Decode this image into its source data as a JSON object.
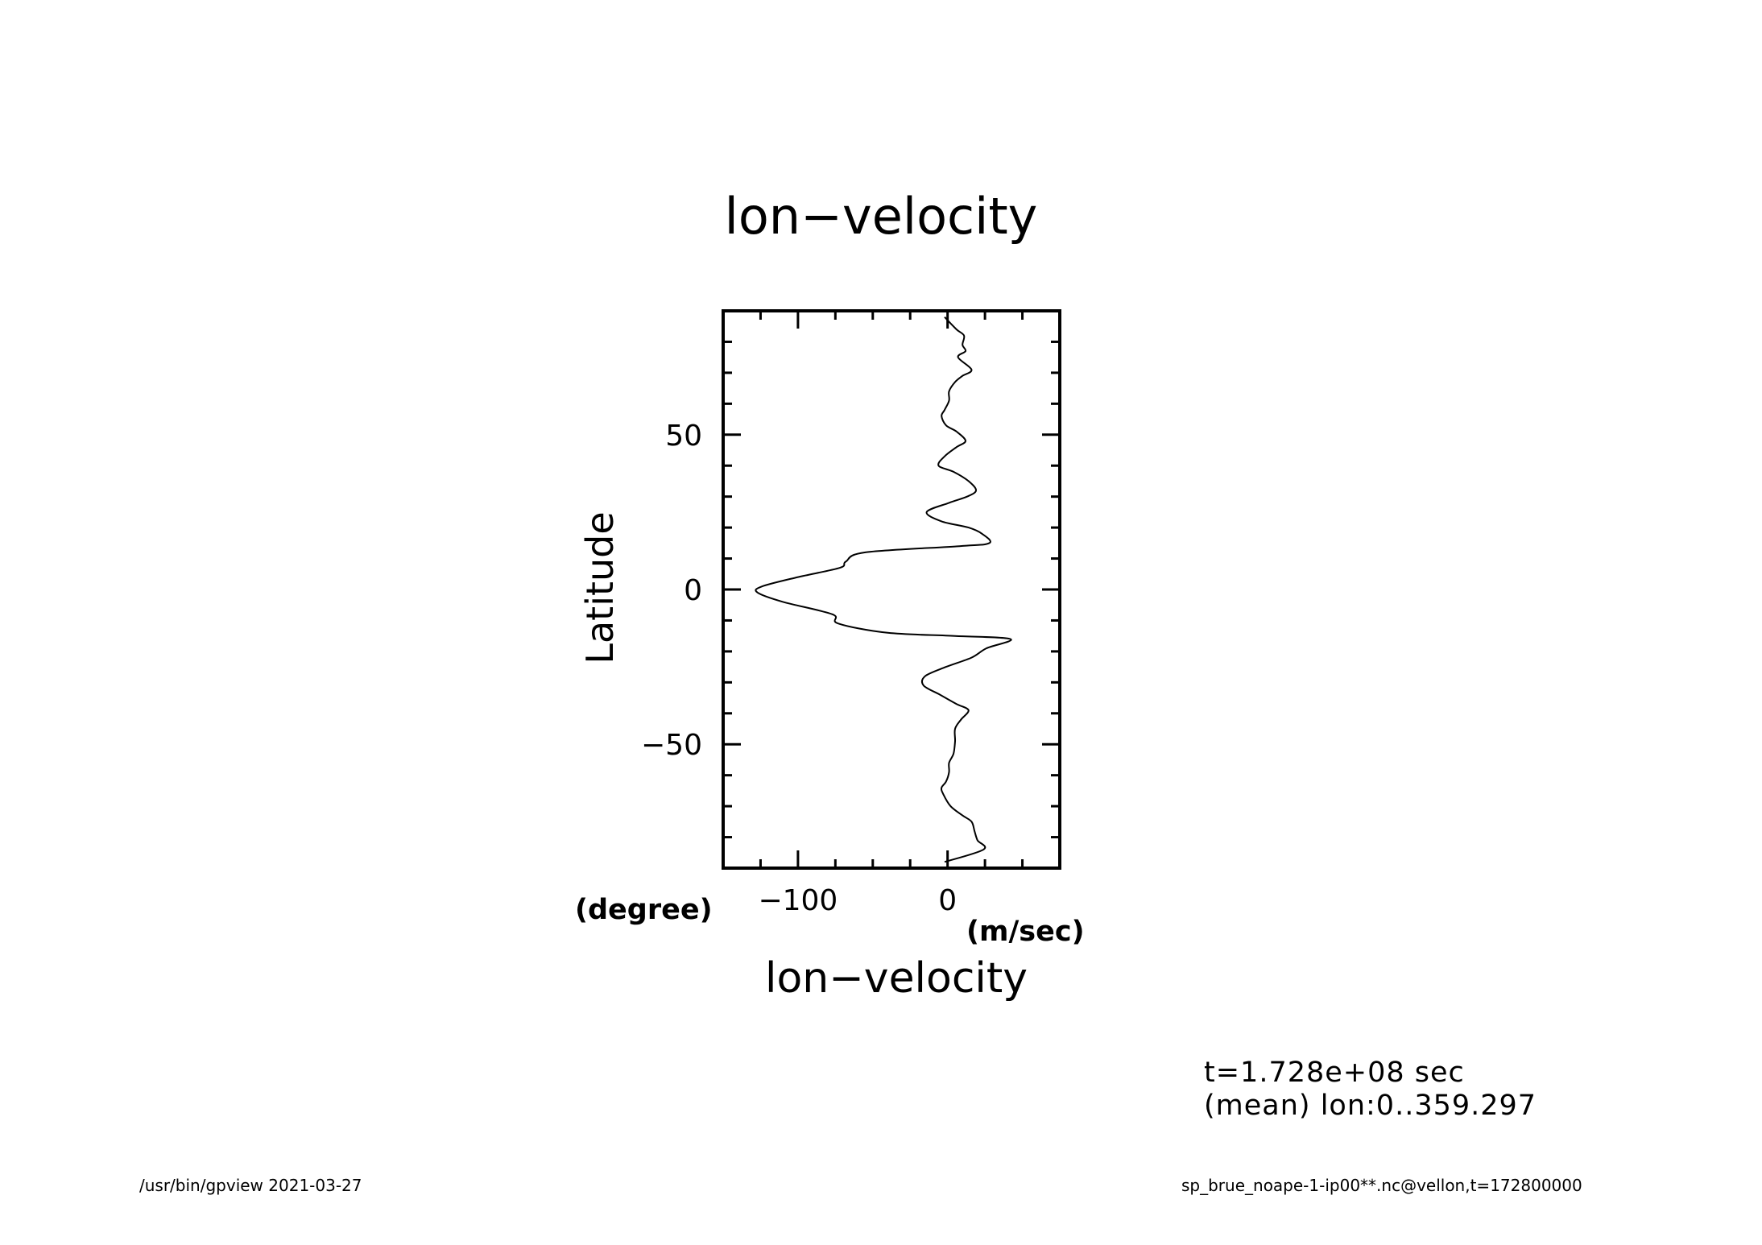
{
  "chart_data": {
    "type": "line",
    "title": "lon−velocity",
    "xlabel": "lon−velocity",
    "ylabel": "Latitude",
    "xunit": "(m/sec)",
    "yunit": "(degree)",
    "xlim": [
      -150,
      75
    ],
    "ylim": [
      -90,
      90
    ],
    "xticks": [
      -100,
      0
    ],
    "xtick_labels": [
      "−100",
      "0"
    ],
    "yticks": [
      50,
      0,
      -50
    ],
    "ytick_labels": [
      "50",
      "0",
      "−50"
    ],
    "grid": false,
    "series": [
      {
        "points": [
          [
            -2,
            88
          ],
          [
            6,
            84
          ],
          [
            11,
            82
          ],
          [
            10,
            79
          ],
          [
            12,
            77
          ],
          [
            7,
            75
          ],
          [
            16,
            71
          ],
          [
            10,
            69
          ],
          [
            5,
            67
          ],
          [
            1,
            64
          ],
          [
            1,
            61
          ],
          [
            -2,
            58
          ],
          [
            -4,
            56
          ],
          [
            -1,
            53
          ],
          [
            6,
            51
          ],
          [
            12,
            48
          ],
          [
            6,
            46
          ],
          [
            -2,
            43
          ],
          [
            -6,
            40
          ],
          [
            4,
            38
          ],
          [
            14,
            35
          ],
          [
            19,
            32
          ],
          [
            13,
            30
          ],
          [
            1,
            28
          ],
          [
            -14,
            25
          ],
          [
            -4,
            22
          ],
          [
            14,
            20
          ],
          [
            23,
            18
          ],
          [
            28,
            15
          ],
          [
            8,
            14
          ],
          [
            -55,
            12
          ],
          [
            -68,
            9
          ],
          [
            -72,
            7
          ],
          [
            -100,
            4
          ],
          [
            -124,
            1
          ],
          [
            -127,
            -1
          ],
          [
            -110,
            -4
          ],
          [
            -77,
            -8
          ],
          [
            -73,
            -11
          ],
          [
            -40,
            -14
          ],
          [
            5,
            -15
          ],
          [
            42,
            -16
          ],
          [
            26,
            -19
          ],
          [
            16,
            -22
          ],
          [
            -1,
            -25
          ],
          [
            -15,
            -28
          ],
          [
            -16,
            -31
          ],
          [
            -5,
            -34
          ],
          [
            6,
            -37
          ],
          [
            14,
            -39
          ],
          [
            9,
            -42
          ],
          [
            5,
            -45
          ],
          [
            5,
            -49
          ],
          [
            4,
            -53
          ],
          [
            1,
            -56
          ],
          [
            1,
            -59
          ],
          [
            -1,
            -62
          ],
          [
            -4,
            -64
          ],
          [
            -3,
            -66
          ],
          [
            2,
            -70
          ],
          [
            10,
            -73
          ],
          [
            16,
            -75
          ],
          [
            18,
            -78
          ],
          [
            20,
            -81
          ],
          [
            24,
            -84
          ],
          [
            -2,
            -88
          ]
        ]
      }
    ]
  },
  "info": {
    "line1": "t=1.728e+08 sec",
    "line2": "(mean) lon:0..359.297"
  },
  "footer": {
    "left": "/usr/bin/gpview   2021-03-27",
    "right": "sp_brue_noape-1-ip00**.nc@vellon,t=172800000"
  }
}
